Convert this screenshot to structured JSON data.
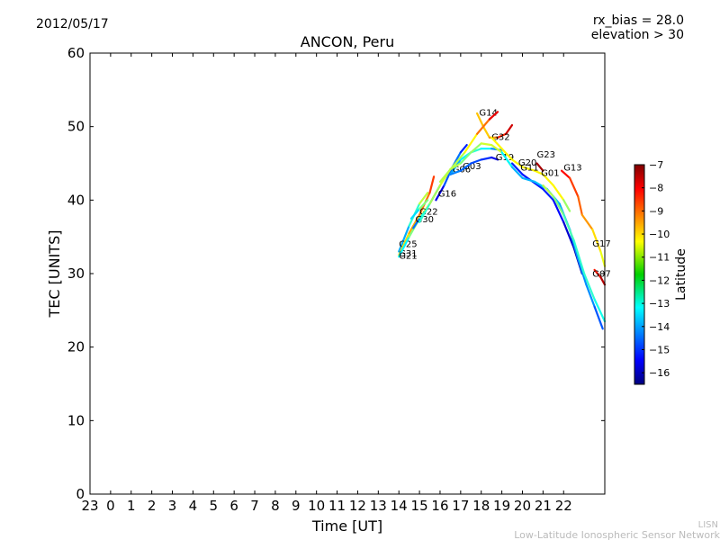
{
  "header": {
    "date": "2012/05/17",
    "rx_bias": "rx_bias = 28.0",
    "elevation": "elevation > 30"
  },
  "footer": {
    "org_short": "LISN",
    "org_full": "Low-Latitude Ionospheric Sensor Network"
  },
  "chart_data": {
    "type": "line",
    "title": "ANCON, Peru",
    "xlabel": "Time [UT]",
    "ylabel": "TEC [UNITS]",
    "xlim": [
      23,
      48
    ],
    "ylim": [
      0,
      60
    ],
    "x_ticks": [
      {
        "value": 23,
        "label": "23"
      },
      {
        "value": 24,
        "label": "0"
      },
      {
        "value": 25,
        "label": "1"
      },
      {
        "value": 26,
        "label": "2"
      },
      {
        "value": 27,
        "label": "3"
      },
      {
        "value": 28,
        "label": "4"
      },
      {
        "value": 29,
        "label": "5"
      },
      {
        "value": 30,
        "label": "6"
      },
      {
        "value": 31,
        "label": "7"
      },
      {
        "value": 32,
        "label": "8"
      },
      {
        "value": 33,
        "label": "9"
      },
      {
        "value": 34,
        "label": "10"
      },
      {
        "value": 35,
        "label": "11"
      },
      {
        "value": 36,
        "label": "12"
      },
      {
        "value": 37,
        "label": "13"
      },
      {
        "value": 38,
        "label": "14"
      },
      {
        "value": 39,
        "label": "15"
      },
      {
        "value": 40,
        "label": "16"
      },
      {
        "value": 41,
        "label": "17"
      },
      {
        "value": 42,
        "label": "18"
      },
      {
        "value": 43,
        "label": "19"
      },
      {
        "value": 44,
        "label": "20"
      },
      {
        "value": 45,
        "label": "21"
      },
      {
        "value": 46,
        "label": "22"
      }
    ],
    "y_ticks": [
      0,
      10,
      20,
      30,
      40,
      50,
      60
    ],
    "colorbar": {
      "label": "Latitude",
      "min": -16.5,
      "max": -7,
      "ticks": [
        -7,
        -8,
        -9,
        -10,
        -11,
        -12,
        -13,
        -14,
        -15,
        -16
      ]
    },
    "series": [
      {
        "name": "G25",
        "label_at": [
          38.0,
          33.6
        ],
        "points": [
          [
            38.0,
            33.0,
            -14.2
          ],
          [
            38.5,
            36.5,
            -13.2
          ],
          [
            39.0,
            39.5,
            -11.8
          ],
          [
            39.4,
            41.0,
            -10.5
          ]
        ]
      },
      {
        "name": "G31",
        "label_at": [
          38.0,
          32.3
        ],
        "points": [
          [
            38.0,
            32.5,
            -10.5
          ],
          [
            38.5,
            35.5,
            -10.0
          ],
          [
            39.0,
            38.0,
            -9.5
          ],
          [
            39.5,
            41.0,
            -9.0
          ],
          [
            39.7,
            43.2,
            -8.5
          ]
        ]
      },
      {
        "name": "G21",
        "label_at": [
          38.0,
          32.0
        ],
        "points": [
          [
            38.0,
            32.3,
            -13.5
          ],
          [
            38.5,
            35.0,
            -12.5
          ],
          [
            39.0,
            37.5,
            -11.0
          ],
          [
            39.5,
            39.5,
            -10.0
          ],
          [
            40.0,
            42.0,
            -8.0
          ]
        ]
      },
      {
        "name": "G22",
        "label_at": [
          39.0,
          38.0
        ],
        "points": [
          [
            38.6,
            37.5,
            -14.0
          ],
          [
            39.0,
            38.8,
            -12.5
          ],
          [
            39.4,
            40.0,
            -11.0
          ]
        ]
      },
      {
        "name": "G30",
        "label_at": [
          38.8,
          37.0
        ],
        "points": [
          [
            38.7,
            36.2,
            -15.0
          ],
          [
            39.0,
            37.5,
            -13.5
          ],
          [
            39.3,
            38.5,
            -12.5
          ]
        ]
      },
      {
        "name": "G16",
        "label_at": [
          39.9,
          40.5
        ],
        "points": [
          [
            39.8,
            40.0,
            -16.0
          ],
          [
            40.2,
            42.0,
            -15.0
          ],
          [
            40.6,
            44.5,
            -14.0
          ],
          [
            41.0,
            46.5,
            -14.5
          ],
          [
            41.3,
            47.5,
            -15.5
          ]
        ]
      },
      {
        "name": "G06",
        "label_at": [
          40.6,
          43.8
        ],
        "points": [
          [
            40.5,
            43.5,
            -14.0
          ],
          [
            41.0,
            45.5,
            -13.5
          ],
          [
            41.5,
            46.5,
            -12.5
          ],
          [
            42.0,
            47.0,
            -12.5
          ],
          [
            42.5,
            47.0,
            -13.5
          ],
          [
            43.0,
            46.8,
            -14.5
          ]
        ]
      },
      {
        "name": "G03",
        "label_at": [
          41.1,
          44.2
        ],
        "points": [
          [
            39.0,
            37.0,
            -13.0
          ],
          [
            39.5,
            39.5,
            -12.0
          ],
          [
            40.0,
            42.0,
            -11.0
          ],
          [
            40.5,
            44.2,
            -11.0
          ],
          [
            41.0,
            45.0,
            -11.5
          ],
          [
            41.5,
            46.5,
            -12.0
          ],
          [
            42.0,
            47.7,
            -11.0
          ],
          [
            42.5,
            47.5,
            -11.0
          ],
          [
            43.0,
            46.5,
            -11.0
          ],
          [
            43.5,
            44.5,
            -11.5
          ]
        ]
      },
      {
        "name": "G14",
        "label_at": [
          41.9,
          51.5
        ],
        "points": [
          [
            41.8,
            51.8,
            -10.0
          ],
          [
            42.1,
            50.0,
            -10.0
          ],
          [
            42.4,
            48.5,
            -10.2
          ],
          [
            42.8,
            48.5,
            -9.0
          ],
          [
            43.2,
            49.0,
            -8.0
          ],
          [
            43.5,
            50.2,
            -7.5
          ]
        ]
      },
      {
        "name": "G32",
        "label_at": [
          42.5,
          48.2
        ],
        "points": [
          [
            40.0,
            42.5,
            -11.0
          ],
          [
            40.6,
            44.5,
            -11.5
          ],
          [
            41.2,
            46.5,
            -11.0
          ],
          [
            41.8,
            49.0,
            -10.0
          ],
          [
            42.4,
            51.0,
            -8.5
          ],
          [
            42.8,
            52.0,
            -7.5
          ]
        ]
      },
      {
        "name": "G19",
        "label_at": [
          42.7,
          45.4
        ],
        "points": [
          [
            40.5,
            43.5,
            -14.0
          ],
          [
            41.0,
            44.0,
            -14.2
          ],
          [
            41.5,
            45.0,
            -14.5
          ],
          [
            42.0,
            45.5,
            -14.8
          ],
          [
            42.5,
            45.8,
            -15.0
          ],
          [
            42.8,
            45.5,
            -16.0
          ]
        ]
      },
      {
        "name": "G20",
        "label_at": [
          43.8,
          44.7
        ],
        "points": [
          [
            42.5,
            48.5,
            -10.5
          ],
          [
            43.0,
            47.0,
            -10.5
          ],
          [
            43.5,
            45.5,
            -10.5
          ],
          [
            44.0,
            44.5,
            -10.5
          ],
          [
            44.6,
            44.0,
            -10.5
          ],
          [
            45.0,
            43.5,
            -10.5
          ],
          [
            45.5,
            42.0,
            -10.5
          ],
          [
            46.0,
            40.0,
            -10.5
          ],
          [
            46.3,
            38.5,
            -12.5
          ]
        ]
      },
      {
        "name": "G11",
        "label_at": [
          43.9,
          44.0
        ],
        "points": [
          [
            43.5,
            45.0,
            -15.0
          ],
          [
            44.0,
            43.5,
            -15.0
          ],
          [
            44.5,
            42.5,
            -15.2
          ],
          [
            45.0,
            41.5,
            -15.0
          ],
          [
            45.5,
            40.0,
            -15.0
          ],
          [
            46.0,
            37.0,
            -15.5
          ],
          [
            46.5,
            33.5,
            -16.0
          ],
          [
            46.9,
            30.0,
            -16.0
          ]
        ]
      },
      {
        "name": "G23",
        "label_at": [
          44.7,
          45.8
        ],
        "points": [
          [
            44.7,
            45.0,
            -7.5
          ],
          [
            45.0,
            44.0,
            -7.2
          ]
        ]
      },
      {
        "name": "G01",
        "label_at": [
          44.9,
          43.3
        ],
        "points": [
          [
            43.0,
            46.5,
            -12.5
          ],
          [
            43.5,
            44.5,
            -13.5
          ],
          [
            44.0,
            43.0,
            -13.8
          ],
          [
            44.6,
            42.5,
            -13.5
          ],
          [
            45.2,
            41.5,
            -13.5
          ],
          [
            45.8,
            39.5,
            -13.5
          ],
          [
            46.3,
            36.0,
            -14.0
          ],
          [
            46.7,
            32.0,
            -14.0
          ],
          [
            47.1,
            28.5,
            -14.0
          ],
          [
            47.5,
            25.5,
            -14.0
          ],
          [
            47.9,
            22.5,
            -15.0
          ]
        ]
      },
      {
        "name": "G13",
        "label_at": [
          46.0,
          44.0
        ],
        "points": [
          [
            45.9,
            44.0,
            -8.0
          ],
          [
            46.3,
            43.0,
            -8.5
          ],
          [
            46.7,
            40.5,
            -9.0
          ],
          [
            46.9,
            38.0,
            -9.2
          ],
          [
            47.4,
            36.0,
            -10.0
          ],
          [
            47.8,
            33.0,
            -10.5
          ],
          [
            48.0,
            31.0,
            -11.0
          ]
        ]
      },
      {
        "name": "G17",
        "label_at": [
          47.4,
          33.7
        ],
        "points": [
          [
            45.0,
            42.0,
            -11.0
          ],
          [
            45.5,
            40.5,
            -11.5
          ],
          [
            46.0,
            38.0,
            -12.0
          ],
          [
            46.5,
            34.5,
            -12.5
          ],
          [
            47.0,
            30.0,
            -12.5
          ],
          [
            47.5,
            26.5,
            -12.5
          ],
          [
            48.0,
            23.5,
            -13.0
          ]
        ]
      },
      {
        "name": "G07",
        "label_at": [
          47.4,
          29.6
        ],
        "points": [
          [
            47.5,
            30.5,
            -9.0
          ],
          [
            47.8,
            29.5,
            -7.8
          ],
          [
            48.0,
            28.5,
            -7.2
          ]
        ]
      }
    ]
  }
}
